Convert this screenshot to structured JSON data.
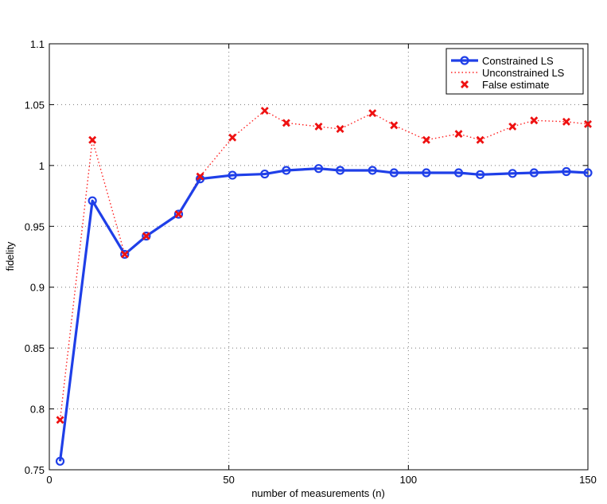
{
  "chart_data": {
    "type": "line",
    "xlabel": "number of measurements (n)",
    "ylabel": "fidelity",
    "xlim": [
      0,
      150
    ],
    "ylim": [
      0.75,
      1.1
    ],
    "x_ticks": [
      0,
      50,
      100,
      150
    ],
    "y_ticks": [
      0.75,
      0.8,
      0.85,
      0.9,
      0.95,
      1,
      1.05,
      1.1
    ],
    "grid": true,
    "legend_position": "top-right",
    "series": [
      {
        "name": "Constrained LS",
        "style": "solid",
        "marker": "circle",
        "color": "#1f3fe8",
        "x": [
          3,
          12,
          21,
          27,
          36,
          42,
          51,
          60,
          66,
          75,
          81,
          90,
          96,
          105,
          114,
          120,
          129,
          135,
          144,
          150
        ],
        "y": [
          0.757,
          0.971,
          0.927,
          0.942,
          0.96,
          0.989,
          0.992,
          0.993,
          0.996,
          0.9975,
          0.996,
          0.996,
          0.994,
          0.994,
          0.994,
          0.9925,
          0.9935,
          0.994,
          0.995,
          0.994
        ]
      },
      {
        "name": "Unconstrained LS",
        "style": "dotted",
        "marker": "none",
        "color": "#ff2020",
        "x": [
          3,
          12,
          21,
          27,
          36,
          42,
          51,
          60,
          66,
          75,
          81,
          90,
          96,
          105,
          114,
          120,
          129,
          135,
          144,
          150
        ],
        "y": [
          0.791,
          1.021,
          0.927,
          0.942,
          0.96,
          0.991,
          1.023,
          1.045,
          1.035,
          1.032,
          1.03,
          1.043,
          1.033,
          1.021,
          1.026,
          1.021,
          1.032,
          1.037,
          1.036,
          1.034
        ]
      },
      {
        "name": "False estimate",
        "style": "none",
        "marker": "x",
        "color": "#ee1111",
        "x": [
          3,
          12,
          21,
          27,
          36,
          42,
          51,
          60,
          66,
          75,
          81,
          90,
          96,
          105,
          114,
          120,
          129,
          135,
          144,
          150
        ],
        "y": [
          0.791,
          1.021,
          0.927,
          0.942,
          0.96,
          0.991,
          1.023,
          1.045,
          1.035,
          1.032,
          1.03,
          1.043,
          1.033,
          1.021,
          1.026,
          1.021,
          1.032,
          1.037,
          1.036,
          1.034
        ]
      }
    ]
  }
}
